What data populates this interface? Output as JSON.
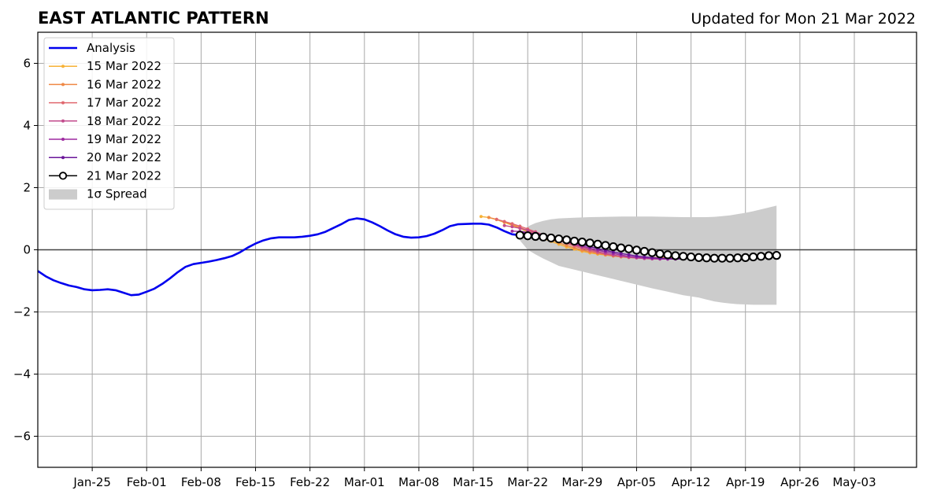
{
  "header": {
    "title": "EAST ATLANTIC PATTERN",
    "updated": "Updated for Mon 21 Mar 2022"
  },
  "chart_data": {
    "type": "line",
    "title": "EAST ATLANTIC PATTERN",
    "subtitle": "Updated for Mon 21 Mar 2022",
    "xlabel": "",
    "ylabel": "",
    "x_axis": {
      "type": "date",
      "range": [
        "2022-01-18",
        "2022-05-11"
      ],
      "ticks": [
        {
          "date": "2022-01-25",
          "label": "Jan-25"
        },
        {
          "date": "2022-02-01",
          "label": "Feb-01"
        },
        {
          "date": "2022-02-08",
          "label": "Feb-08"
        },
        {
          "date": "2022-02-15",
          "label": "Feb-15"
        },
        {
          "date": "2022-02-22",
          "label": "Feb-22"
        },
        {
          "date": "2022-03-01",
          "label": "Mar-01"
        },
        {
          "date": "2022-03-08",
          "label": "Mar-08"
        },
        {
          "date": "2022-03-15",
          "label": "Mar-15"
        },
        {
          "date": "2022-03-22",
          "label": "Mar-22"
        },
        {
          "date": "2022-03-29",
          "label": "Mar-29"
        },
        {
          "date": "2022-04-05",
          "label": "Apr-05"
        },
        {
          "date": "2022-04-12",
          "label": "Apr-12"
        },
        {
          "date": "2022-04-19",
          "label": "Apr-19"
        },
        {
          "date": "2022-04-26",
          "label": "Apr-26"
        },
        {
          "date": "2022-05-03",
          "label": "May-03"
        }
      ]
    },
    "y_axis": {
      "range": [
        -7,
        7
      ],
      "ticks": [
        {
          "value": 6,
          "label": "6"
        },
        {
          "value": 4,
          "label": "4"
        },
        {
          "value": 2,
          "label": "2"
        },
        {
          "value": 0,
          "label": "0"
        },
        {
          "value": -2,
          "label": "−2"
        },
        {
          "value": -4,
          "label": "−4"
        },
        {
          "value": -6,
          "label": "−6"
        }
      ]
    },
    "grid": true,
    "zero_line": true,
    "legend": {
      "position": "top-left",
      "entries": [
        "Analysis",
        "15 Mar 2022",
        "16 Mar 2022",
        "17 Mar 2022",
        "18 Mar 2022",
        "19 Mar 2022",
        "20 Mar 2022",
        "21 Mar 2022",
        "1σ Spread"
      ]
    },
    "analysis": {
      "name": "Analysis",
      "color": "#0000ee",
      "points": [
        [
          "2022-01-18",
          -0.68
        ],
        [
          "2022-01-19",
          -0.85
        ],
        [
          "2022-01-20",
          -0.98
        ],
        [
          "2022-01-21",
          -1.07
        ],
        [
          "2022-01-22",
          -1.15
        ],
        [
          "2022-01-23",
          -1.2
        ],
        [
          "2022-01-24",
          -1.27
        ],
        [
          "2022-01-25",
          -1.3
        ],
        [
          "2022-01-26",
          -1.29
        ],
        [
          "2022-01-27",
          -1.27
        ],
        [
          "2022-01-28",
          -1.3
        ],
        [
          "2022-01-29",
          -1.38
        ],
        [
          "2022-01-30",
          -1.46
        ],
        [
          "2022-01-31",
          -1.44
        ],
        [
          "2022-02-01",
          -1.35
        ],
        [
          "2022-02-02",
          -1.25
        ],
        [
          "2022-02-03",
          -1.1
        ],
        [
          "2022-02-04",
          -0.92
        ],
        [
          "2022-02-05",
          -0.72
        ],
        [
          "2022-02-06",
          -0.55
        ],
        [
          "2022-02-07",
          -0.46
        ],
        [
          "2022-02-08",
          -0.42
        ],
        [
          "2022-02-09",
          -0.38
        ],
        [
          "2022-02-10",
          -0.33
        ],
        [
          "2022-02-11",
          -0.27
        ],
        [
          "2022-02-12",
          -0.2
        ],
        [
          "2022-02-13",
          -0.08
        ],
        [
          "2022-02-14",
          0.07
        ],
        [
          "2022-02-15",
          0.2
        ],
        [
          "2022-02-16",
          0.3
        ],
        [
          "2022-02-17",
          0.37
        ],
        [
          "2022-02-18",
          0.4
        ],
        [
          "2022-02-19",
          0.4
        ],
        [
          "2022-02-20",
          0.4
        ],
        [
          "2022-02-21",
          0.42
        ],
        [
          "2022-02-22",
          0.45
        ],
        [
          "2022-02-23",
          0.5
        ],
        [
          "2022-02-24",
          0.58
        ],
        [
          "2022-02-25",
          0.7
        ],
        [
          "2022-02-26",
          0.82
        ],
        [
          "2022-02-27",
          0.96
        ],
        [
          "2022-02-28",
          1.01
        ],
        [
          "2022-03-01",
          0.98
        ],
        [
          "2022-03-02",
          0.88
        ],
        [
          "2022-03-03",
          0.76
        ],
        [
          "2022-03-04",
          0.62
        ],
        [
          "2022-03-05",
          0.5
        ],
        [
          "2022-03-06",
          0.42
        ],
        [
          "2022-03-07",
          0.39
        ],
        [
          "2022-03-08",
          0.4
        ],
        [
          "2022-03-09",
          0.44
        ],
        [
          "2022-03-10",
          0.52
        ],
        [
          "2022-03-11",
          0.63
        ],
        [
          "2022-03-12",
          0.76
        ],
        [
          "2022-03-13",
          0.82
        ],
        [
          "2022-03-14",
          0.83
        ],
        [
          "2022-03-15",
          0.84
        ],
        [
          "2022-03-16",
          0.84
        ],
        [
          "2022-03-17",
          0.81
        ],
        [
          "2022-03-18",
          0.72
        ],
        [
          "2022-03-19",
          0.6
        ],
        [
          "2022-03-20",
          0.5
        ],
        [
          "2022-03-21",
          0.47
        ]
      ]
    },
    "spread": {
      "name": "1σ Spread",
      "color": "#cccccc",
      "start": "2022-03-21",
      "end": "2022-04-23",
      "upper": [
        0.55,
        0.75,
        0.86,
        0.93,
        0.98,
        1.01,
        1.03,
        1.05,
        1.06,
        1.07,
        1.07,
        1.07,
        1.06,
        1.05,
        1.05,
        1.05,
        1.06,
        1.08,
        1.11,
        1.15,
        1.19,
        1.24,
        1.3,
        1.36,
        1.42
      ],
      "lower": [
        0.3,
        0.0,
        -0.15,
        -0.28,
        -0.4,
        -0.52,
        -0.64,
        -0.76,
        -0.88,
        -1.0,
        -1.12,
        -1.24,
        -1.35,
        -1.46,
        -1.54,
        -1.6,
        -1.66,
        -1.7,
        -1.73,
        -1.75,
        -1.76,
        -1.77,
        -1.77,
        -1.77,
        -1.77
      ],
      "dates": [
        "2022-03-21",
        "2022-03-22",
        "2022-03-23",
        "2022-03-24",
        "2022-03-25",
        "2022-03-26",
        "2022-03-28",
        "2022-03-30",
        "2022-04-01",
        "2022-04-03",
        "2022-04-05",
        "2022-04-07",
        "2022-04-09",
        "2022-04-11",
        "2022-04-13",
        "2022-04-14",
        "2022-04-15",
        "2022-04-16",
        "2022-04-17",
        "2022-04-18",
        "2022-04-19",
        "2022-04-20",
        "2022-04-21",
        "2022-04-22",
        "2022-04-23"
      ]
    },
    "forecasts": [
      {
        "name": "15 Mar 2022",
        "color": "#f7b236",
        "start": "2022-03-16",
        "values": [
          1.07,
          1.04,
          0.97,
          0.88,
          0.79,
          0.69,
          0.58,
          0.47,
          0.37,
          0.27,
          0.18,
          0.09,
          0.02,
          -0.05,
          -0.1,
          -0.14,
          -0.17,
          -0.2,
          -0.22,
          -0.23,
          -0.24,
          -0.25,
          -0.25,
          -0.25,
          -0.24,
          -0.23,
          -0.22
        ]
      },
      {
        "name": "16 Mar 2022",
        "color": "#ef8845",
        "start": "2022-03-17",
        "values": [
          1.04,
          0.98,
          0.9,
          0.81,
          0.72,
          0.62,
          0.52,
          0.42,
          0.32,
          0.23,
          0.14,
          0.06,
          -0.01,
          -0.07,
          -0.12,
          -0.16,
          -0.2,
          -0.23,
          -0.25,
          -0.26,
          -0.27,
          -0.27,
          -0.27,
          -0.26,
          -0.25,
          -0.24
        ]
      },
      {
        "name": "17 Mar 2022",
        "color": "#e0676e",
        "start": "2022-03-18",
        "values": [
          0.98,
          0.91,
          0.84,
          0.76,
          0.67,
          0.58,
          0.48,
          0.39,
          0.3,
          0.21,
          0.12,
          0.04,
          -0.03,
          -0.09,
          -0.14,
          -0.18,
          -0.21,
          -0.24,
          -0.26,
          -0.28,
          -0.29,
          -0.29,
          -0.29,
          -0.28,
          -0.27
        ]
      },
      {
        "name": "18 Mar 2022",
        "color": "#c24b8c",
        "start": "2022-03-19",
        "values": [
          0.78,
          0.74,
          0.69,
          0.63,
          0.56,
          0.48,
          0.4,
          0.32,
          0.24,
          0.16,
          0.08,
          0.01,
          -0.06,
          -0.12,
          -0.17,
          -0.21,
          -0.24,
          -0.26,
          -0.28,
          -0.29,
          -0.3,
          -0.3,
          -0.29,
          -0.28
        ]
      },
      {
        "name": "19 Mar 2022",
        "color": "#9e2aa0",
        "start": "2022-03-20",
        "values": [
          0.6,
          0.59,
          0.56,
          0.52,
          0.46,
          0.4,
          0.33,
          0.26,
          0.19,
          0.12,
          0.05,
          -0.01,
          -0.07,
          -0.12,
          -0.17,
          -0.21,
          -0.24,
          -0.26,
          -0.28,
          -0.29,
          -0.3,
          -0.3,
          -0.29
        ]
      },
      {
        "name": "20 Mar 2022",
        "color": "#6a1599",
        "start": "2022-03-21",
        "values": [
          0.55,
          0.53,
          0.5,
          0.46,
          0.41,
          0.35,
          0.29,
          0.23,
          0.17,
          0.1,
          0.04,
          -0.02,
          -0.07,
          -0.12,
          -0.16,
          -0.2,
          -0.23,
          -0.25,
          -0.27,
          -0.28,
          -0.29,
          -0.29
        ]
      },
      {
        "name": "21 Mar 2022",
        "color": "#000000",
        "marker_fill": "#ffffff",
        "start": "2022-03-21",
        "values": [
          0.47,
          0.45,
          0.43,
          0.41,
          0.38,
          0.35,
          0.32,
          0.28,
          0.25,
          0.22,
          0.18,
          0.14,
          0.1,
          0.06,
          0.03,
          -0.01,
          -0.05,
          -0.09,
          -0.13,
          -0.16,
          -0.19,
          -0.21,
          -0.23,
          -0.25,
          -0.26,
          -0.27,
          -0.27,
          -0.27,
          -0.26,
          -0.25,
          -0.23,
          -0.21,
          -0.19,
          -0.18
        ]
      }
    ]
  }
}
